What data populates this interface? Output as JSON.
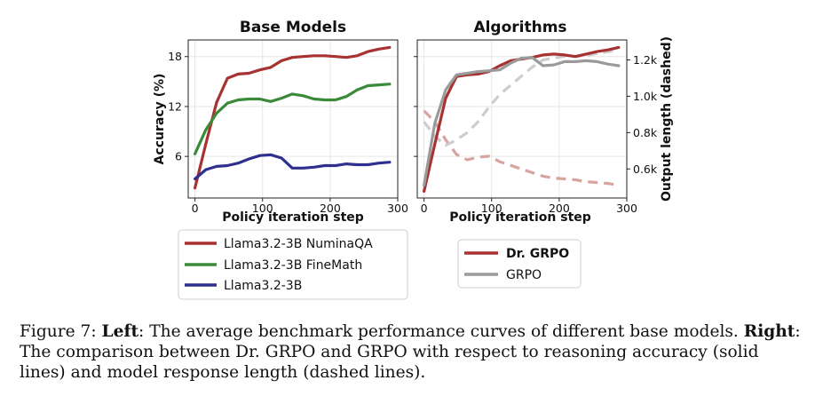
{
  "chart_data": [
    {
      "type": "line",
      "title": "Base Models",
      "xlabel": "Policy iteration step",
      "ylabel": "Accuracy (%)",
      "xlim": [
        -10,
        300
      ],
      "ylim": [
        1,
        20
      ],
      "xticks": [
        0,
        100,
        200,
        300
      ],
      "yticks": [
        6,
        12,
        18
      ],
      "grid": true,
      "legend_position": "below",
      "series": [
        {
          "name": "Llama3.2-3B NuminaQA",
          "color": "#a83232",
          "x": [
            0,
            16,
            32,
            48,
            64,
            80,
            96,
            112,
            128,
            144,
            160,
            176,
            192,
            208,
            224,
            240,
            256,
            272,
            288
          ],
          "y": [
            2.2,
            7.5,
            12.5,
            15.4,
            15.9,
            16.0,
            16.4,
            16.7,
            17.5,
            17.9,
            18.0,
            18.1,
            18.1,
            18.0,
            17.9,
            18.1,
            18.6,
            18.9,
            19.1
          ]
        },
        {
          "name": "Llama3.2-3B FineMath",
          "color": "#3a8a3a",
          "x": [
            0,
            16,
            32,
            48,
            64,
            80,
            96,
            112,
            128,
            144,
            160,
            176,
            192,
            208,
            224,
            240,
            256,
            272,
            288
          ],
          "y": [
            6.3,
            9.2,
            11.2,
            12.4,
            12.8,
            12.9,
            12.9,
            12.6,
            13.0,
            13.5,
            13.3,
            12.9,
            12.8,
            12.8,
            13.2,
            14.0,
            14.5,
            14.6,
            14.7
          ]
        },
        {
          "name": "Llama3.2-3B",
          "color": "#2f2f8f",
          "x": [
            0,
            16,
            32,
            48,
            64,
            80,
            96,
            112,
            128,
            144,
            160,
            176,
            192,
            208,
            224,
            240,
            256,
            272,
            288
          ],
          "y": [
            3.3,
            4.4,
            4.8,
            4.9,
            5.2,
            5.7,
            6.1,
            6.2,
            5.8,
            4.6,
            4.6,
            4.7,
            4.9,
            4.9,
            5.1,
            5.0,
            5.0,
            5.2,
            5.3
          ]
        }
      ]
    },
    {
      "type": "line",
      "title": "Algorithms",
      "xlabel": "Policy iteration step",
      "ylabel_right": "Output length (dashed)",
      "xlim": [
        -10,
        300
      ],
      "ylim_left": [
        1,
        20
      ],
      "ylim_right": [
        440,
        1310
      ],
      "xticks": [
        0,
        100,
        200,
        300
      ],
      "yticks_right": [
        600,
        800,
        1000,
        1200
      ],
      "ytick_labels_right": [
        "0.6k",
        "0.8k",
        "1.0k",
        "1.2k"
      ],
      "grid": true,
      "legend_position": "below",
      "series": [
        {
          "name": "Dr. GRPO",
          "color": "#a83232",
          "style": "solid",
          "axis": "left",
          "x": [
            0,
            16,
            32,
            48,
            64,
            80,
            96,
            112,
            128,
            144,
            160,
            176,
            192,
            208,
            224,
            240,
            256,
            272,
            288
          ],
          "y": [
            1.8,
            7.5,
            13.0,
            15.6,
            15.8,
            15.9,
            16.2,
            16.9,
            17.5,
            17.7,
            17.9,
            18.2,
            18.3,
            18.2,
            18.0,
            18.3,
            18.6,
            18.8,
            19.1
          ]
        },
        {
          "name": "GRPO",
          "color": "#9a9a9a",
          "style": "solid",
          "axis": "left",
          "x": [
            0,
            16,
            32,
            48,
            64,
            80,
            96,
            112,
            128,
            144,
            160,
            176,
            192,
            208,
            224,
            240,
            256,
            272,
            288
          ],
          "y": [
            2.5,
            10.0,
            14.0,
            15.8,
            16.0,
            16.2,
            16.3,
            16.4,
            17.2,
            17.8,
            17.9,
            16.9,
            17.0,
            17.4,
            17.4,
            17.5,
            17.4,
            17.1,
            16.9
          ]
        },
        {
          "name": "Dr. GRPO length",
          "color": "#d8a49f",
          "style": "dashed",
          "axis": "right",
          "x": [
            0,
            16,
            32,
            48,
            64,
            80,
            96,
            112,
            128,
            144,
            160,
            176,
            192,
            208,
            224,
            240,
            256,
            272,
            288
          ],
          "y": [
            920,
            860,
            760,
            680,
            650,
            665,
            670,
            640,
            620,
            600,
            580,
            560,
            550,
            545,
            540,
            530,
            525,
            520,
            510
          ]
        },
        {
          "name": "GRPO length",
          "color": "#cdcdcd",
          "style": "dashed",
          "axis": "right",
          "x": [
            0,
            16,
            32,
            48,
            64,
            80,
            96,
            112,
            128,
            144,
            160,
            176,
            192,
            208,
            224,
            240,
            256,
            272,
            288
          ],
          "y": [
            860,
            780,
            730,
            760,
            800,
            860,
            940,
            1010,
            1060,
            1110,
            1160,
            1200,
            1210,
            1220,
            1220,
            1225,
            1235,
            1245,
            1255
          ]
        }
      ]
    }
  ],
  "legend_left": [
    "Llama3.2-3B NuminaQA",
    "Llama3.2-3B FineMath",
    "Llama3.2-3B"
  ],
  "legend_right": [
    "Dr. GRPO",
    "GRPO"
  ],
  "caption": {
    "fig_label": "Figure 7:",
    "left_label": "Left",
    "left_text": ": The average benchmark performance curves of different base models.",
    "right_label": "Right",
    "right_text": ": The comparison between Dr. GRPO and GRPO with respect to reasoning accuracy (solid lines) and model response length (dashed lines)."
  }
}
